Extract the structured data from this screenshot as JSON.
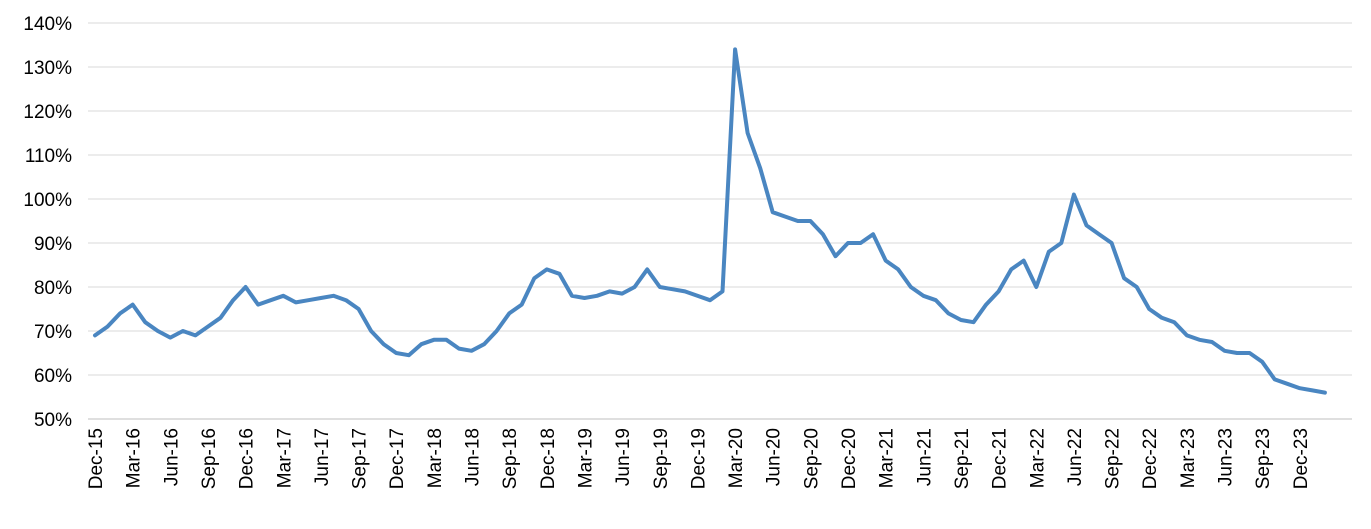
{
  "chart_data": {
    "type": "line",
    "color": "#4a86c1",
    "grid": true,
    "ylim": [
      50,
      140
    ],
    "yticks": [
      {
        "value": 50,
        "label": "50%"
      },
      {
        "value": 60,
        "label": "60%"
      },
      {
        "value": 70,
        "label": "70%"
      },
      {
        "value": 80,
        "label": "80%"
      },
      {
        "value": 90,
        "label": "90%"
      },
      {
        "value": 100,
        "label": "100%"
      },
      {
        "value": 110,
        "label": "110%"
      },
      {
        "value": 120,
        "label": "120%"
      },
      {
        "value": 130,
        "label": "130%"
      },
      {
        "value": 140,
        "label": "140%"
      }
    ],
    "categories": [
      "Dec-15",
      null,
      null,
      "Mar-16",
      null,
      null,
      "Jun-16",
      null,
      null,
      "Sep-16",
      null,
      null,
      "Dec-16",
      null,
      null,
      "Mar-17",
      null,
      null,
      "Jun-17",
      null,
      null,
      "Sep-17",
      null,
      null,
      "Dec-17",
      null,
      null,
      "Mar-18",
      null,
      null,
      "Jun-18",
      null,
      null,
      "Sep-18",
      null,
      null,
      "Dec-18",
      null,
      null,
      "Mar-19",
      null,
      null,
      "Jun-19",
      null,
      null,
      "Sep-19",
      null,
      null,
      "Dec-19",
      null,
      null,
      "Mar-20",
      null,
      null,
      "Jun-20",
      null,
      null,
      "Sep-20",
      null,
      null,
      "Dec-20",
      null,
      null,
      "Mar-21",
      null,
      null,
      "Jun-21",
      null,
      null,
      "Sep-21",
      null,
      null,
      "Dec-21",
      null,
      null,
      "Mar-22",
      null,
      null,
      "Jun-22",
      null,
      null,
      "Sep-22",
      null,
      null,
      "Dec-22",
      null,
      null,
      "Mar-23",
      null,
      null,
      "Jun-23",
      null,
      null,
      "Sep-23",
      null,
      null,
      "Dec-23",
      null,
      null
    ],
    "values": [
      69,
      71,
      74,
      76,
      72,
      70,
      68.5,
      70,
      69,
      71,
      73,
      77,
      80,
      76,
      77,
      78,
      76.5,
      77,
      77.5,
      78,
      77,
      75,
      70,
      67,
      65,
      64.5,
      67,
      68,
      68,
      66,
      65.5,
      67,
      70,
      74,
      76,
      82,
      84,
      83,
      78,
      77.5,
      78,
      79,
      78.5,
      80,
      84,
      80,
      79.5,
      79,
      78,
      77,
      79,
      134,
      115,
      107,
      97,
      96,
      95,
      95,
      92,
      87,
      90,
      90,
      92,
      86,
      84,
      80,
      78,
      77,
      74,
      72.5,
      72,
      76,
      79,
      84,
      86,
      80,
      88,
      90,
      101,
      94,
      92,
      90,
      82,
      80,
      75,
      73,
      72,
      69,
      68,
      67.5,
      65.5,
      65,
      65,
      63,
      59,
      58,
      57,
      56.5,
      56
    ]
  }
}
